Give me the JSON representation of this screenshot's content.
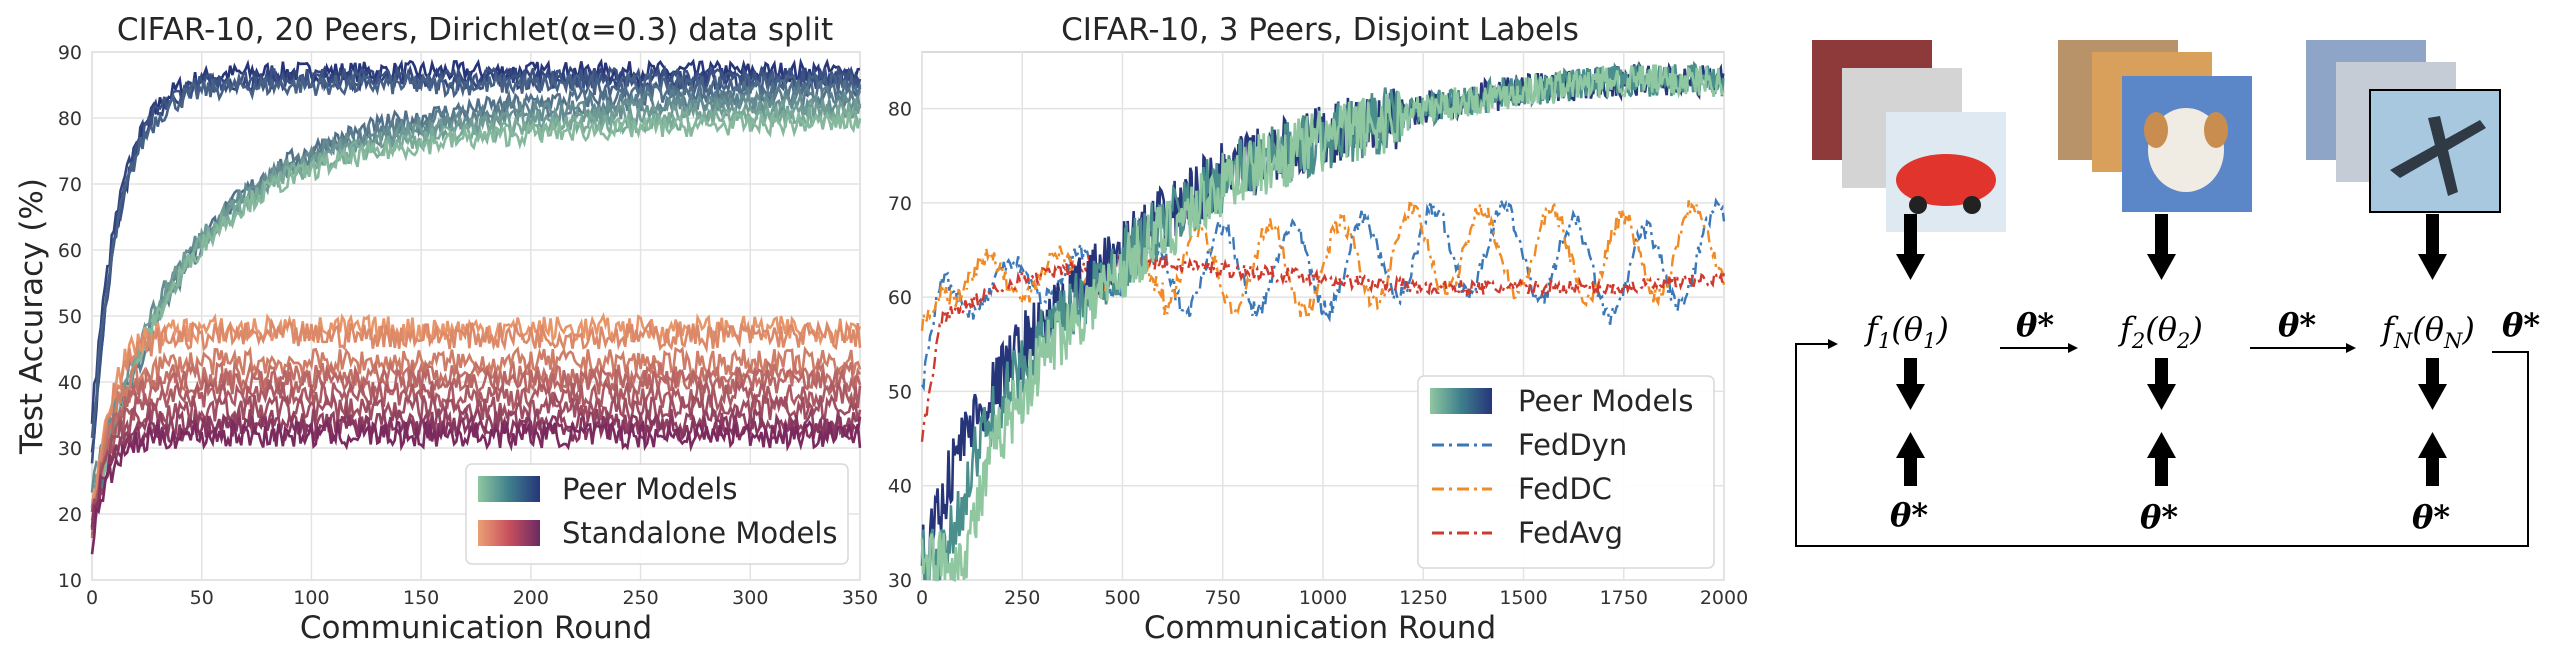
{
  "chart_data": [
    {
      "type": "line",
      "title": "CIFAR-10, 20 Peers, Dirichlet(α=0.3) data split",
      "xlabel": "Communication Round",
      "ylabel": "Test Accuracy (%)",
      "xlim": [
        0,
        350
      ],
      "ylim": [
        10,
        90
      ],
      "xticks": [
        "0",
        "50",
        "100",
        "150",
        "200",
        "250",
        "300",
        "350"
      ],
      "yticks": [
        "10",
        "20",
        "30",
        "40",
        "50",
        "60",
        "70",
        "80",
        "90"
      ],
      "grid": true,
      "legend_position": "lower-right",
      "legend": [
        "Peer Models",
        "Standalone Models"
      ],
      "series": [
        {
          "name": "Peer Models",
          "color_from": "#8fc7a0",
          "color_to": "#26357a",
          "count": 10,
          "final_values": [
            87,
            86,
            86,
            85,
            85,
            84,
            83,
            82,
            81,
            80
          ],
          "values": [
            {
              "x": 0,
              "y": 35
            },
            {
              "x": 5,
              "y": 60
            },
            {
              "x": 10,
              "y": 66
            },
            {
              "x": 25,
              "y": 70
            },
            {
              "x": 50,
              "y": 74
            },
            {
              "x": 100,
              "y": 78
            },
            {
              "x": 150,
              "y": 81
            },
            {
              "x": 200,
              "y": 83
            },
            {
              "x": 250,
              "y": 84
            },
            {
              "x": 300,
              "y": 85
            },
            {
              "x": 350,
              "y": 85
            }
          ]
        },
        {
          "name": "Standalone Models",
          "color_from": "#e8956a",
          "color_to": "#7a2a5e",
          "count": 10,
          "final_values": [
            48,
            47,
            43,
            41,
            40,
            38,
            36,
            34,
            33,
            32
          ],
          "values": [
            {
              "x": 0,
              "y": 17
            },
            {
              "x": 5,
              "y": 28
            },
            {
              "x": 10,
              "y": 33
            },
            {
              "x": 25,
              "y": 37
            },
            {
              "x": 50,
              "y": 39
            },
            {
              "x": 100,
              "y": 40
            },
            {
              "x": 200,
              "y": 40
            },
            {
              "x": 350,
              "y": 40
            }
          ]
        }
      ]
    },
    {
      "type": "line",
      "title": "CIFAR-10, 3 Peers, Disjoint Labels",
      "xlabel": "Communication Round",
      "ylabel": "",
      "xlim": [
        0,
        2000
      ],
      "ylim": [
        30,
        86
      ],
      "xticks": [
        "0",
        "250",
        "500",
        "750",
        "1000",
        "1250",
        "1500",
        "1750",
        "2000"
      ],
      "yticks": [
        "30",
        "40",
        "50",
        "60",
        "70",
        "80"
      ],
      "grid": true,
      "legend_position": "lower-right",
      "legend": [
        "Peer Models",
        "FedDyn",
        "FedDC",
        "FedAvg"
      ],
      "series": [
        {
          "name": "Peer Models",
          "style": "solid",
          "colors": [
            "#26357a",
            "#4a8f8c",
            "#8fc7a0"
          ],
          "values": [
            {
              "x": 0,
              "y": 32
            },
            {
              "x": 100,
              "y": 45
            },
            {
              "x": 250,
              "y": 55
            },
            {
              "x": 500,
              "y": 65
            },
            {
              "x": 750,
              "y": 73
            },
            {
              "x": 1000,
              "y": 77
            },
            {
              "x": 1250,
              "y": 80
            },
            {
              "x": 1500,
              "y": 82
            },
            {
              "x": 1750,
              "y": 83
            },
            {
              "x": 2000,
              "y": 83
            }
          ]
        },
        {
          "name": "FedDyn",
          "style": "dashdot",
          "color": "#3a78b8",
          "values": [
            {
              "x": 0,
              "y": 50
            },
            {
              "x": 50,
              "y": 60
            },
            {
              "x": 250,
              "y": 62
            },
            {
              "x": 500,
              "y": 63
            },
            {
              "x": 750,
              "y": 63
            },
            {
              "x": 1000,
              "y": 63
            },
            {
              "x": 1250,
              "y": 65
            },
            {
              "x": 1500,
              "y": 65
            },
            {
              "x": 1750,
              "y": 62
            },
            {
              "x": 2000,
              "y": 65
            }
          ]
        },
        {
          "name": "FedDC",
          "style": "dashdot",
          "color": "#f08a24",
          "values": [
            {
              "x": 0,
              "y": 55
            },
            {
              "x": 50,
              "y": 62
            },
            {
              "x": 250,
              "y": 62
            },
            {
              "x": 500,
              "y": 63
            },
            {
              "x": 750,
              "y": 63
            },
            {
              "x": 1000,
              "y": 63
            },
            {
              "x": 1250,
              "y": 65
            },
            {
              "x": 1500,
              "y": 65
            },
            {
              "x": 1750,
              "y": 64
            },
            {
              "x": 2000,
              "y": 66
            }
          ]
        },
        {
          "name": "FedAvg",
          "style": "dashdot",
          "color": "#d03a2e",
          "values": [
            {
              "x": 0,
              "y": 45
            },
            {
              "x": 50,
              "y": 58
            },
            {
              "x": 250,
              "y": 62
            },
            {
              "x": 500,
              "y": 64
            },
            {
              "x": 750,
              "y": 63
            },
            {
              "x": 1000,
              "y": 62
            },
            {
              "x": 1250,
              "y": 61
            },
            {
              "x": 1500,
              "y": 61
            },
            {
              "x": 1750,
              "y": 61
            },
            {
              "x": 2000,
              "y": 62
            }
          ]
        }
      ]
    }
  ],
  "diagram": {
    "nodes": [
      {
        "fn": "f",
        "sub": "1",
        "param": "θ",
        "psub": "1"
      },
      {
        "fn": "f",
        "sub": "2",
        "param": "θ",
        "psub": "2"
      },
      {
        "fn": "f",
        "sub": "N",
        "param": "θ",
        "psub": "N"
      }
    ],
    "theta_star": "θ*",
    "arrow_labels": [
      "θ*",
      "θ*",
      "θ*"
    ],
    "image_stacks": [
      {
        "subject": "car",
        "colors": [
          "#8e3a3a",
          "#d9d9d9",
          "#e0342c"
        ]
      },
      {
        "subject": "dog",
        "colors": [
          "#b8936a",
          "#d9a05b",
          "#5b86c8"
        ]
      },
      {
        "subject": "airplane",
        "colors": [
          "#8fa5c8",
          "#c6ccd6",
          "#a8c8e0"
        ]
      }
    ]
  }
}
